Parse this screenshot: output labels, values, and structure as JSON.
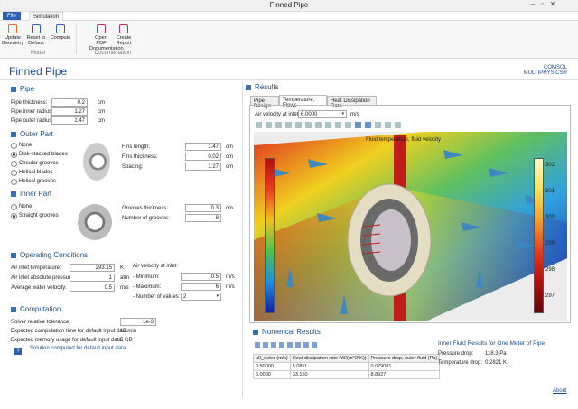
{
  "window": {
    "title": "Finned Pipe"
  },
  "ribbon": {
    "file": "File",
    "tabs": [
      "Simulation"
    ],
    "groups": [
      {
        "label": "Model",
        "buttons": [
          "Update Geometry",
          "Reset to Default",
          "Compute"
        ]
      },
      {
        "label": "Documentation",
        "buttons": [
          "Open PDF Documentation",
          "Create Report"
        ]
      }
    ]
  },
  "app": {
    "title": "Finned Pipe",
    "logo": "COMSOL MULTIPHYSICS®"
  },
  "pipe": {
    "heading": "Pipe",
    "fields": [
      {
        "label": "Pipe thickness:",
        "value": "0.2",
        "unit": "cm"
      },
      {
        "label": "Pipe inner radius:",
        "value": "1.27",
        "unit": "cm"
      },
      {
        "label": "Pipe outer radius:",
        "value": "1.47",
        "unit": "cm"
      }
    ]
  },
  "outer_part": {
    "heading": "Outer Part",
    "options": [
      "None",
      "Disk-stacked blades",
      "Circular grooves",
      "Helical blades",
      "Helical grooves"
    ],
    "selected": 1,
    "fields": [
      {
        "label": "Fins length:",
        "value": "1.47",
        "unit": "cm"
      },
      {
        "label": "Fins thickness:",
        "value": "0.02",
        "unit": "cm"
      },
      {
        "label": "Spacing:",
        "value": "1.27",
        "unit": "cm"
      }
    ]
  },
  "inner_part": {
    "heading": "Inner Part",
    "options": [
      "None",
      "Straight grooves"
    ],
    "selected": 1,
    "fields": [
      {
        "label": "Grooves thickness:",
        "value": "0.3",
        "unit": "cm"
      },
      {
        "label": "Number of grooves:",
        "value": "8"
      }
    ]
  },
  "operating_conditions": {
    "heading": "Operating Conditions",
    "fields": [
      {
        "label": "Air inlet temperature:",
        "value": "293.15",
        "unit": "K"
      },
      {
        "label": "Air inlet absolute pressure:",
        "value": "1",
        "unit": "atm"
      },
      {
        "label": "Average water velocity:",
        "value": "0.5",
        "unit": "m/s"
      }
    ],
    "air_velocity": {
      "heading": "Air velocity at inlet:",
      "fields": [
        {
          "label": "- Minimum:",
          "value": "0.5",
          "unit": "m/s"
        },
        {
          "label": "- Maximum:",
          "value": "6",
          "unit": "m/s"
        },
        {
          "label": "- Number of values:",
          "value": "2"
        }
      ]
    }
  },
  "computation": {
    "heading": "Computation",
    "fields": [
      {
        "label": "Solver relative tolerance:",
        "value": "1e-3"
      },
      {
        "label": "Expected computation time for default input data:",
        "value": "15 min"
      },
      {
        "label": "Expected memory usage for default input data:",
        "value": "5 GB"
      }
    ],
    "message": "Solution computed for default input data."
  },
  "results": {
    "heading": "Results",
    "tabs": [
      "Pipe Design",
      "Temperature, Flows",
      "Heat Dissipation Rate"
    ],
    "active_tab": 1,
    "inlet_label": "Air velocity at inlet:",
    "inlet_value": "6.0000",
    "inlet_unit": "m/s",
    "plot_title": "Fluid temperature, fluid velocity",
    "colorbar_ticks": [
      "302",
      "301",
      "300",
      "299",
      "298",
      "297"
    ]
  },
  "numerical_results": {
    "heading": "Numerical Results",
    "columns": [
      "u0_outer (m/s)",
      "Heat dissipation rate (W/(m^2*K))",
      "Pressure drop, outer fluid (Pa)"
    ],
    "rows": [
      [
        "0.50000",
        "5.0811",
        "0.079081"
      ],
      [
        "6.0000",
        "33.150",
        "8.8927"
      ]
    ]
  },
  "inner_fluid": {
    "heading": "Inner Fluid Results for One Meter of Pipe",
    "fields": [
      {
        "label": "Pressure drop:",
        "value": "118.3 Pa"
      },
      {
        "label": "Temperature drop:",
        "value": "0.2821 K"
      }
    ]
  },
  "footer": {
    "about": "About"
  }
}
